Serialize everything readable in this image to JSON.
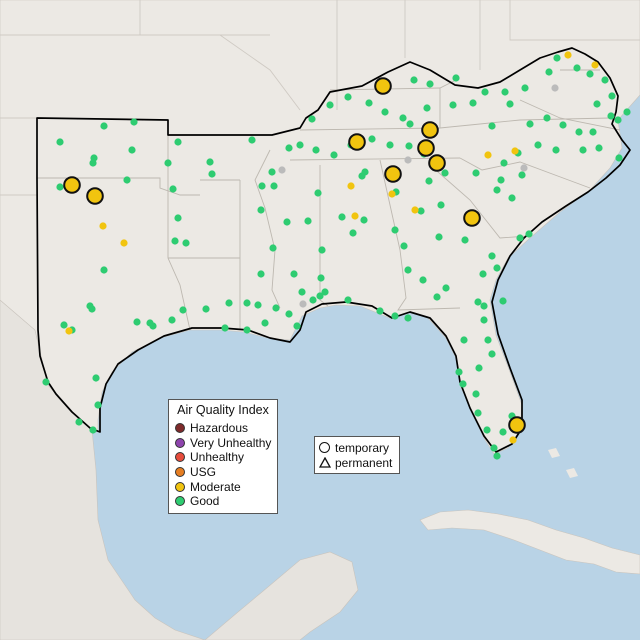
{
  "legend": {
    "title": "Air Quality Index",
    "items": [
      {
        "label": "Hazardous",
        "color": "#7e2a2a"
      },
      {
        "label": "Very Unhealthy",
        "color": "#8e44ad"
      },
      {
        "label": "Unhealthy",
        "color": "#e74c3c"
      },
      {
        "label": "USG",
        "color": "#e67e22"
      },
      {
        "label": "Moderate",
        "color": "#f1c40f"
      },
      {
        "label": "Good",
        "color": "#2ecc71"
      }
    ]
  },
  "monitor_types": {
    "temporary": "temporary",
    "permanent": "permanent"
  },
  "colors": {
    "ocean": "#b9d3e6",
    "land": "#ece9e4",
    "good": "#2ecc71",
    "moderate": "#f1c40f",
    "no_data": "#bbbbbb",
    "border": "#000000"
  }
}
